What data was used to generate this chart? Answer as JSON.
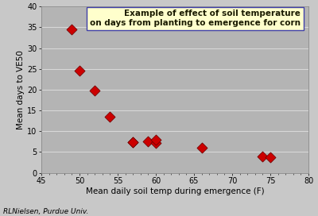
{
  "x": [
    49,
    50,
    52,
    54,
    57,
    57,
    59,
    60,
    60,
    66,
    74,
    75
  ],
  "y": [
    34.5,
    24.5,
    19.7,
    13.5,
    7.4,
    7.4,
    7.5,
    7.2,
    8.0,
    6.0,
    3.9,
    3.7
  ],
  "marker_color": "#cc0000",
  "marker_edge_color": "#660000",
  "bg_color": "#c8c8c8",
  "plot_bg_color": "#b4b4b4",
  "xlabel": "Mean daily soil temp during emergence (F)",
  "ylabel": "Mean days to VE50",
  "xlim": [
    45,
    80
  ],
  "ylim": [
    0,
    40
  ],
  "xticks": [
    45,
    50,
    55,
    60,
    65,
    70,
    75,
    80
  ],
  "yticks": [
    0,
    5,
    10,
    15,
    20,
    25,
    30,
    35,
    40
  ],
  "annotation_text": "Example of effect of soil temperature\non days from planting to emergence for corn",
  "annotation_box_color": "#ffffcc",
  "annotation_box_edge": "#4040aa",
  "footnote": "RLNielsen, Purdue Univ.",
  "grid_color": "#d8d8d8",
  "axis_label_fontsize": 7.5,
  "tick_fontsize": 7,
  "annotation_fontsize": 7.5,
  "footnote_fontsize": 6.5,
  "marker_size": 45
}
